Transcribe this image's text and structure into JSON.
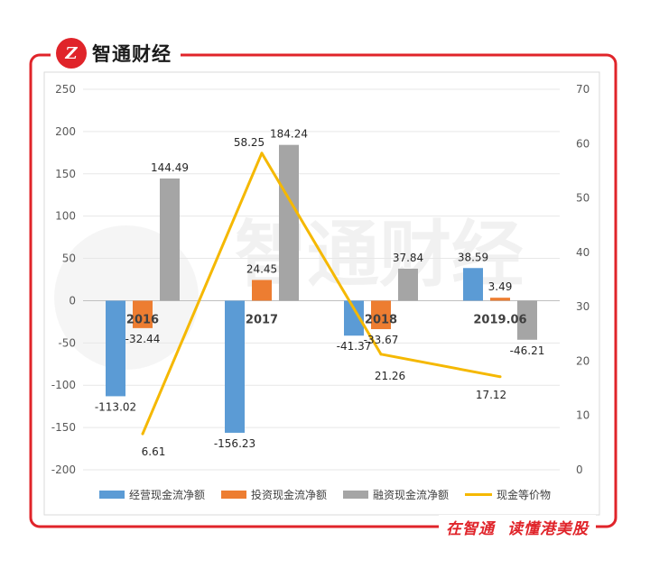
{
  "brand": {
    "logo_text": "Z",
    "name": "智通财经"
  },
  "slogan": {
    "part1": "在智通",
    "part2": "读懂港美股"
  },
  "watermark": "智通财经",
  "colors": {
    "frame": "#e0242a",
    "operating": "#5b9bd5",
    "investing": "#ed7d31",
    "financing": "#a5a5a5",
    "cash": "#f5b800"
  },
  "chart_data": {
    "type": "bar",
    "categories": [
      "2016",
      "2017",
      "2018",
      "2019.06"
    ],
    "series": [
      {
        "name": "经营现金流净额",
        "type": "bar",
        "axis": "left",
        "values": [
          -113.02,
          -156.23,
          -41.37,
          38.59
        ]
      },
      {
        "name": "投资现金流净额",
        "type": "bar",
        "axis": "left",
        "values": [
          -32.44,
          24.45,
          -33.67,
          3.49
        ]
      },
      {
        "name": "融资现金流净额",
        "type": "bar",
        "axis": "left",
        "values": [
          144.49,
          184.24,
          37.84,
          -46.21
        ]
      },
      {
        "name": "现金等价物",
        "type": "line",
        "axis": "right",
        "values": [
          6.61,
          58.25,
          21.26,
          17.12
        ]
      }
    ],
    "data_labels": {
      "operating": [
        "-113.02",
        "-156.23",
        "-41.37",
        "38.59"
      ],
      "investing": [
        "-32.44",
        "24.45",
        "-33.67",
        "3.49"
      ],
      "financing": [
        "144.49",
        "184.24",
        "37.84",
        "-46.21"
      ],
      "cash": [
        "6.61",
        "58.25",
        "21.26",
        "17.12"
      ]
    },
    "y_left": {
      "min": -200,
      "max": 250,
      "ticks": [
        "250",
        "200",
        "150",
        "100",
        "50",
        "0",
        "-50",
        "-100",
        "-150",
        "-200"
      ]
    },
    "y_right": {
      "min": 0,
      "max": 70,
      "ticks": [
        "70",
        "60",
        "50",
        "40",
        "30",
        "20",
        "10",
        "0"
      ]
    },
    "grid": true,
    "legend_position": "bottom"
  }
}
